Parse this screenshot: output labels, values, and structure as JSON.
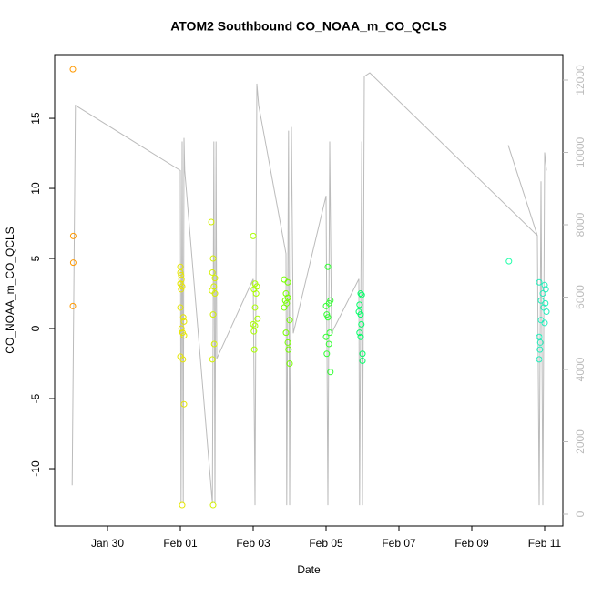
{
  "chart_data": {
    "type": "scatter",
    "title": "ATOM2 Southbound CO_NOAA_m_CO_QCLS",
    "x_label": "Date",
    "y_label": "CO_NOAA_m_CO_QCLS",
    "xlim": [
      28.55,
      42.5
    ],
    "xticks": [
      {
        "value": 30,
        "label": "Jan 30"
      },
      {
        "value": 32,
        "label": "Feb 01"
      },
      {
        "value": 34,
        "label": "Feb 03"
      },
      {
        "value": 36,
        "label": "Feb 05"
      },
      {
        "value": 38,
        "label": "Feb 07"
      },
      {
        "value": 40,
        "label": "Feb 09"
      },
      {
        "value": 42,
        "label": "Feb 11"
      }
    ],
    "ylim": [
      -14.09,
      19.55
    ],
    "yticks": [
      -10,
      -5,
      0,
      5,
      10,
      15
    ],
    "y2lim": [
      -327,
      12704
    ],
    "y2ticks": [
      0,
      2000,
      4000,
      6000,
      8000,
      10000,
      12000
    ],
    "series": [
      {
        "color": "#ff9900",
        "x": [
          29.05,
          29.06,
          29.06,
          29.05
        ],
        "values": [
          18.5,
          6.6,
          4.7,
          1.6
        ]
      },
      {
        "color": "#e6e600",
        "x": [
          32.0,
          32.0,
          32.02,
          32.03,
          32.0,
          32.05,
          32.02,
          32.0,
          32.08,
          32.1,
          32.03,
          32.06,
          32.1,
          32.0,
          32.07,
          32.1,
          32.05
        ],
        "values": [
          4.4,
          4.0,
          3.8,
          3.5,
          3.2,
          3.0,
          2.8,
          1.5,
          0.8,
          0.5,
          0.0,
          -0.3,
          -0.5,
          -2.0,
          -2.2,
          -5.4,
          -12.6
        ]
      },
      {
        "color": "#d4f000",
        "x": [
          32.85,
          32.9,
          32.88,
          32.95,
          32.92,
          32.87,
          32.95,
          32.9,
          32.93,
          32.88,
          32.9
        ],
        "values": [
          7.6,
          5.0,
          4.0,
          3.6,
          3.0,
          2.7,
          2.5,
          1.0,
          -1.1,
          -2.2,
          -12.6
        ]
      },
      {
        "color": "#aaff00",
        "x": [
          34.0,
          34.05,
          34.1,
          34.02,
          34.08,
          34.05,
          34.12,
          34.0,
          34.05,
          34.02,
          34.03
        ],
        "values": [
          6.6,
          3.2,
          3.0,
          2.8,
          2.5,
          1.5,
          0.7,
          0.3,
          0.2,
          -0.2,
          -1.5
        ]
      },
      {
        "color": "#77ff00",
        "x": [
          34.85,
          34.95,
          34.9,
          34.95,
          34.88,
          34.92,
          34.85,
          35.0,
          34.9,
          34.95,
          34.97,
          35.0
        ],
        "values": [
          3.5,
          3.3,
          2.5,
          2.2,
          2.0,
          1.8,
          1.5,
          0.6,
          -0.3,
          -1.0,
          -1.5,
          -2.5
        ]
      },
      {
        "color": "#33ff33",
        "x": [
          36.05,
          36.12,
          36.08,
          36.0,
          36.02,
          36.05,
          36.1,
          36.0,
          36.08,
          36.02,
          36.12
        ],
        "values": [
          4.4,
          2.0,
          1.8,
          1.6,
          1.0,
          0.8,
          -0.3,
          -0.6,
          -1.1,
          -1.8,
          -3.1
        ]
      },
      {
        "color": "#00ff66",
        "x": [
          36.95,
          36.98,
          36.92,
          36.9,
          36.95,
          36.97,
          36.92,
          36.95,
          37.0,
          37.0
        ],
        "values": [
          2.5,
          2.4,
          1.7,
          1.2,
          1.0,
          0.3,
          -0.3,
          -0.6,
          -1.8,
          -2.3
        ]
      },
      {
        "color": "#22ffaa",
        "x": [
          41.02
        ],
        "values": [
          4.8
        ]
      },
      {
        "color": "#22eebb",
        "x": [
          41.85,
          42.0,
          42.03,
          41.95,
          41.9,
          42.02,
          41.97,
          42.05,
          41.9,
          42.0,
          41.85,
          41.88,
          41.87,
          41.85
        ],
        "values": [
          3.3,
          3.1,
          2.8,
          2.5,
          2.0,
          1.8,
          1.5,
          1.2,
          0.6,
          0.4,
          -0.6,
          -1.0,
          -1.5,
          -2.2
        ]
      },
      {
        "color": "#bbbbbb",
        "axis": "y2",
        "kind": "line",
        "x": [
          29.03,
          29.12,
          32.0,
          32.02,
          32.05,
          32.08,
          32.1,
          32.12,
          32.88,
          32.92,
          32.95,
          32.98,
          33.0,
          34.0,
          34.05,
          34.1,
          34.15,
          34.9,
          34.92,
          34.97,
          35.0,
          35.05,
          35.1,
          36.0,
          36.05,
          36.1,
          36.15,
          36.9,
          36.92,
          36.98,
          37.0,
          37.05,
          37.2,
          41.8,
          41.85,
          41.9,
          41.95,
          42.0,
          42.05,
          null,
          41.0,
          41.8
        ],
        "values": [
          800,
          11300,
          9500,
          300,
          10300,
          300,
          10400,
          9500,
          300,
          10300,
          300,
          10300,
          4300,
          6500,
          250,
          11900,
          11300,
          7200,
          250,
          10600,
          250,
          10700,
          5000,
          8800,
          250,
          10300,
          5000,
          6500,
          250,
          10300,
          250,
          12100,
          12200,
          7700,
          250,
          9200,
          250,
          10000,
          9500,
          null,
          10200,
          7700
        ]
      }
    ]
  }
}
